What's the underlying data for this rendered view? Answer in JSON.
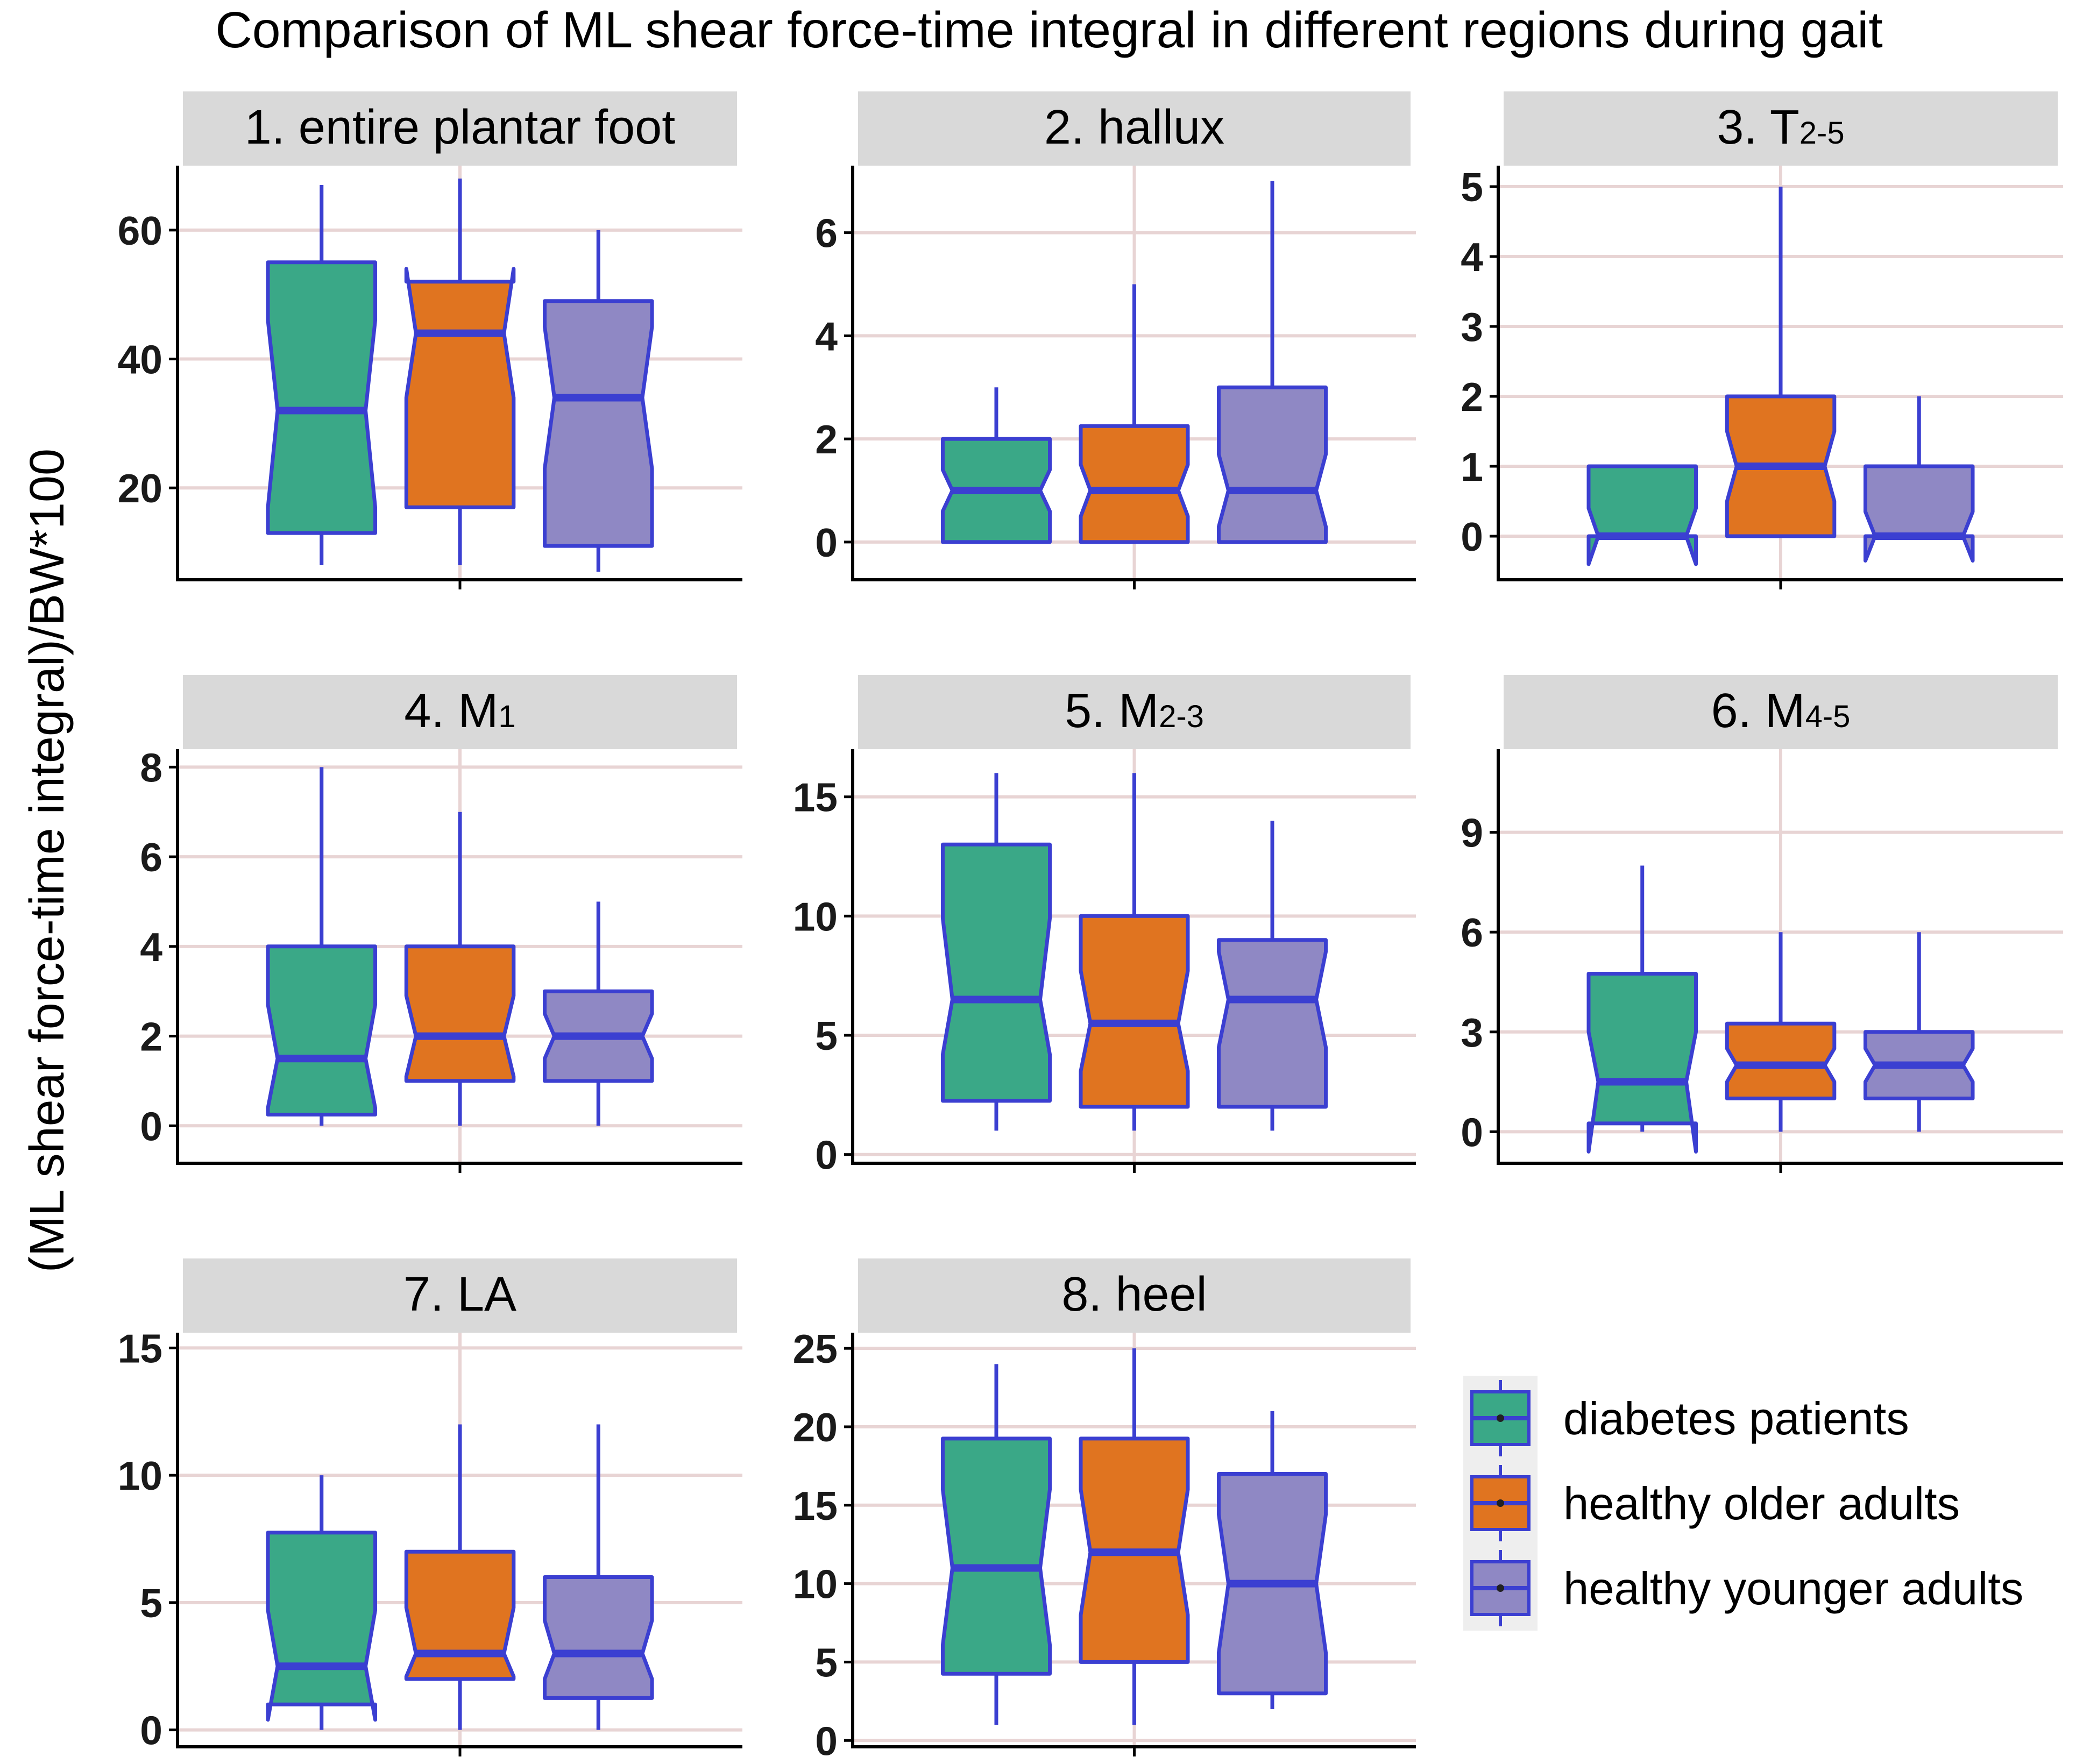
{
  "chart_data": {
    "type": "boxplot",
    "title": "Comparison of ML shear force-time integral in different regions during gait",
    "ylabel": "(ML shear force-time integral)/BW*100",
    "xlabel": "",
    "legend": {
      "position": "right",
      "entries": [
        {
          "name": "diabetes patients",
          "color": "#3aa887"
        },
        {
          "name": "healthy older adults",
          "color": "#e07420"
        },
        {
          "name": "healthy younger adults",
          "color": "#8f88c4"
        }
      ]
    },
    "box_border_color": "#3b3fd1",
    "panels": [
      {
        "title": "1. entire plantar foot",
        "title_main": "1. entire plantar foot",
        "title_sub": "",
        "ylim": [
          6,
          70
        ],
        "yticks": [
          20,
          40,
          60
        ],
        "boxes": [
          {
            "group": "diabetes patients",
            "min": 8,
            "q1": 13,
            "median": 32,
            "q3": 55,
            "max": 67,
            "notch_low": 17,
            "notch_high": 46
          },
          {
            "group": "healthy older adults",
            "min": 8,
            "q1": 17,
            "median": 44,
            "q3": 52,
            "max": 68,
            "notch_low": 34,
            "notch_high": 54
          },
          {
            "group": "healthy younger adults",
            "min": 7,
            "q1": 11,
            "median": 34,
            "q3": 49,
            "max": 60,
            "notch_low": 23,
            "notch_high": 45
          }
        ]
      },
      {
        "title": "2. hallux",
        "title_main": "2. hallux",
        "title_sub": "",
        "ylim": [
          -0.7,
          7.3
        ],
        "yticks": [
          0,
          2,
          4,
          6
        ],
        "boxes": [
          {
            "group": "diabetes patients",
            "min": 0,
            "q1": 0,
            "median": 1,
            "q3": 2,
            "max": 3,
            "notch_low": 0.6,
            "notch_high": 1.4
          },
          {
            "group": "healthy older adults",
            "min": 0,
            "q1": 0,
            "median": 1,
            "q3": 2.25,
            "max": 5,
            "notch_low": 0.5,
            "notch_high": 1.5
          },
          {
            "group": "healthy younger adults",
            "min": 0,
            "q1": 0,
            "median": 1,
            "q3": 3,
            "max": 7,
            "notch_low": 0.3,
            "notch_high": 1.7
          }
        ]
      },
      {
        "title": "3. T2-5",
        "title_main": "3. T",
        "title_sub": "2-5",
        "ylim": [
          -0.6,
          5.3
        ],
        "yticks": [
          0,
          1,
          2,
          3,
          4,
          5
        ],
        "boxes": [
          {
            "group": "diabetes patients",
            "min": 0,
            "q1": 0,
            "median": 0,
            "q3": 1,
            "max": 1,
            "notch_low": -0.4,
            "notch_high": 0.4
          },
          {
            "group": "healthy older adults",
            "min": 0,
            "q1": 0,
            "median": 1,
            "q3": 2,
            "max": 5,
            "notch_low": 0.5,
            "notch_high": 1.5
          },
          {
            "group": "healthy younger adults",
            "min": 0,
            "q1": 0,
            "median": 0,
            "q3": 1,
            "max": 2,
            "notch_low": -0.35,
            "notch_high": 0.35
          }
        ]
      },
      {
        "title": "4. M1",
        "title_main": "4. M",
        "title_sub": "1",
        "ylim": [
          -0.8,
          8.4
        ],
        "yticks": [
          0,
          2,
          4,
          6,
          8
        ],
        "boxes": [
          {
            "group": "diabetes patients",
            "min": 0,
            "q1": 0.25,
            "median": 1.5,
            "q3": 4,
            "max": 8,
            "notch_low": 0.4,
            "notch_high": 2.7
          },
          {
            "group": "healthy older adults",
            "min": 0,
            "q1": 1,
            "median": 2,
            "q3": 4,
            "max": 7,
            "notch_low": 1.1,
            "notch_high": 2.9
          },
          {
            "group": "healthy younger adults",
            "min": 0,
            "q1": 1,
            "median": 2,
            "q3": 3,
            "max": 5,
            "notch_low": 1.5,
            "notch_high": 2.5
          }
        ]
      },
      {
        "title": "5. M2-3",
        "title_main": "5. M",
        "title_sub": "2-3",
        "ylim": [
          -0.3,
          17
        ],
        "yticks": [
          0,
          5,
          10,
          15
        ],
        "boxes": [
          {
            "group": "diabetes patients",
            "min": 1,
            "q1": 2.25,
            "median": 6.5,
            "q3": 13,
            "max": 16,
            "notch_low": 4.2,
            "notch_high": 9.9
          },
          {
            "group": "healthy older adults",
            "min": 1,
            "q1": 2,
            "median": 5.5,
            "q3": 10,
            "max": 16,
            "notch_low": 3.5,
            "notch_high": 7.7
          },
          {
            "group": "healthy younger adults",
            "min": 1,
            "q1": 2,
            "median": 6.5,
            "q3": 9,
            "max": 14,
            "notch_low": 4.5,
            "notch_high": 8.5
          }
        ]
      },
      {
        "title": "6. M4-5",
        "title_main": "6. M",
        "title_sub": "4-5",
        "ylim": [
          -0.9,
          11.5
        ],
        "yticks": [
          0,
          3,
          6,
          9
        ],
        "boxes": [
          {
            "group": "diabetes patients",
            "min": 0,
            "q1": 0.25,
            "median": 1.5,
            "q3": 4.75,
            "max": 8,
            "notch_low": -0.6,
            "notch_high": 3
          },
          {
            "group": "healthy older adults",
            "min": 0,
            "q1": 1,
            "median": 2,
            "q3": 3.25,
            "max": 6,
            "notch_low": 1.5,
            "notch_high": 2.5
          },
          {
            "group": "healthy younger adults",
            "min": 0,
            "q1": 1,
            "median": 2,
            "q3": 3,
            "max": 6,
            "notch_low": 1.5,
            "notch_high": 2.5
          }
        ]
      },
      {
        "title": "7. LA",
        "title_main": "7. LA",
        "title_sub": "",
        "ylim": [
          -0.6,
          15.6
        ],
        "yticks": [
          0,
          5,
          10,
          15
        ],
        "boxes": [
          {
            "group": "diabetes patients",
            "min": 0,
            "q1": 1,
            "median": 2.5,
            "q3": 7.75,
            "max": 10,
            "notch_low": 0.4,
            "notch_high": 4.7
          },
          {
            "group": "healthy older adults",
            "min": 0,
            "q1": 2,
            "median": 3,
            "q3": 7,
            "max": 12,
            "notch_low": 2.1,
            "notch_high": 4.8
          },
          {
            "group": "healthy younger adults",
            "min": 0,
            "q1": 1.25,
            "median": 3,
            "q3": 6,
            "max": 12,
            "notch_low": 2,
            "notch_high": 4.3
          }
        ]
      },
      {
        "title": "8. heel",
        "title_main": "8. heel",
        "title_sub": "",
        "ylim": [
          -0.3,
          26
        ],
        "yticks": [
          0,
          5,
          10,
          15,
          20,
          25
        ],
        "boxes": [
          {
            "group": "diabetes patients",
            "min": 1,
            "q1": 4.25,
            "median": 11,
            "q3": 19.25,
            "max": 24,
            "notch_low": 6.1,
            "notch_high": 16
          },
          {
            "group": "healthy older adults",
            "min": 1,
            "q1": 5,
            "median": 12,
            "q3": 19.25,
            "max": 25,
            "notch_low": 8,
            "notch_high": 16
          },
          {
            "group": "healthy younger adults",
            "min": 2,
            "q1": 3,
            "median": 10,
            "q3": 17,
            "max": 21,
            "notch_low": 5.6,
            "notch_high": 14.4
          }
        ]
      }
    ]
  }
}
